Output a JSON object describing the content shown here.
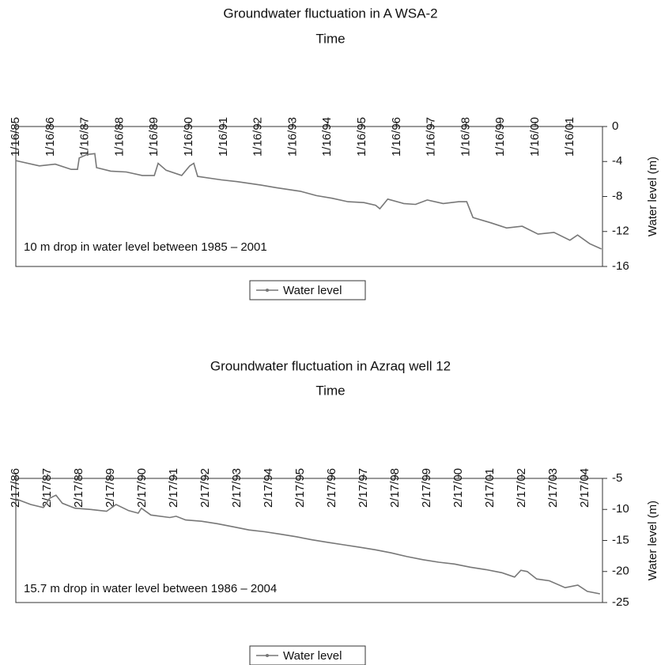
{
  "chart_data": [
    {
      "type": "line",
      "title": "Groundwater fluctuation in A WSA-2",
      "xlabel": "Time",
      "ylabel": "Water level (m)",
      "annotation": "10 m drop in water level between 1985 – 2001",
      "x": [
        1985.04,
        1985.72,
        1986.18,
        1986.64,
        1986.82,
        1986.87,
        1987.09,
        1987.32,
        1987.37,
        1987.78,
        1988.23,
        1988.69,
        1989.04,
        1989.15,
        1989.38,
        1989.83,
        1990.06,
        1990.18,
        1990.29,
        1990.98,
        1991.43,
        1992.12,
        1992.57,
        1993.26,
        1993.72,
        1994.17,
        1994.63,
        1995.09,
        1995.43,
        1995.55,
        1995.78,
        1996.24,
        1996.58,
        1996.92,
        1997.38,
        1997.83,
        1998.06,
        1998.24,
        1998.75,
        1999.21,
        1999.66,
        2000.12,
        2000.58,
        2001.04,
        2001.26,
        2001.61,
        2001.95
      ],
      "series": [
        {
          "name": "Water level",
          "color": "#777777",
          "values": [
            -3.9,
            -4.5,
            -4.3,
            -4.9,
            -4.9,
            -3.6,
            -3.2,
            -3.1,
            -4.7,
            -5.1,
            -5.2,
            -5.6,
            -5.6,
            -4.2,
            -5.0,
            -5.6,
            -4.5,
            -4.2,
            -5.7,
            -6.1,
            -6.3,
            -6.7,
            -7.0,
            -7.4,
            -7.9,
            -8.2,
            -8.6,
            -8.7,
            -9.0,
            -9.4,
            -8.3,
            -8.8,
            -8.9,
            -8.4,
            -8.8,
            -8.6,
            -8.6,
            -10.4,
            -11.0,
            -11.6,
            -11.4,
            -12.3,
            -12.1,
            -13.0,
            -12.4,
            -13.4,
            -14.0
          ]
        }
      ],
      "xlim": [
        1985.04,
        2001.98
      ],
      "xticks": [
        {
          "value": 1985.04,
          "label": "1/16/85"
        },
        {
          "value": 1986.04,
          "label": "1/16/86"
        },
        {
          "value": 1987.04,
          "label": "1/16/87"
        },
        {
          "value": 1988.04,
          "label": "1/16/88"
        },
        {
          "value": 1989.04,
          "label": "1/16/89"
        },
        {
          "value": 1990.04,
          "label": "1/16/90"
        },
        {
          "value": 1991.04,
          "label": "1/16/91"
        },
        {
          "value": 1992.04,
          "label": "1/16/92"
        },
        {
          "value": 1993.04,
          "label": "1/16/93"
        },
        {
          "value": 1994.04,
          "label": "1/16/94"
        },
        {
          "value": 1995.04,
          "label": "1/16/95"
        },
        {
          "value": 1996.04,
          "label": "1/16/96"
        },
        {
          "value": 1997.04,
          "label": "1/16/97"
        },
        {
          "value": 1998.04,
          "label": "1/16/98"
        },
        {
          "value": 1999.04,
          "label": "1/16/99"
        },
        {
          "value": 2000.04,
          "label": "1/16/00"
        },
        {
          "value": 2001.04,
          "label": "1/16/01"
        }
      ],
      "ylim": [
        -16,
        0
      ],
      "yticks": [
        0,
        -4,
        -8,
        -12,
        -16
      ],
      "legend": "bottom"
    },
    {
      "type": "line",
      "title": "Groundwater fluctuation in Azraq well 12",
      "xlabel": "Time",
      "ylabel": "Water level (m)",
      "annotation": "15.7 m drop in water level between 1986 – 2004",
      "x": [
        1986.13,
        1986.6,
        1987.0,
        1987.2,
        1987.4,
        1987.6,
        1988.0,
        1988.5,
        1989.0,
        1989.3,
        1989.7,
        1990.0,
        1990.1,
        1990.4,
        1991.0,
        1991.2,
        1991.5,
        1992.0,
        1992.5,
        1993.0,
        1993.5,
        1994.0,
        1994.5,
        1995.0,
        1995.5,
        1996.0,
        1996.5,
        1997.0,
        1997.5,
        1998.0,
        1998.5,
        1999.0,
        1999.5,
        2000.0,
        2000.5,
        2001.0,
        2001.5,
        2001.9,
        2002.1,
        2002.3,
        2002.6,
        2003.0,
        2003.5,
        2003.9,
        2004.2,
        2004.6
      ],
      "series": [
        {
          "name": "Water level",
          "color": "#777777",
          "values": [
            -8.3,
            -9.2,
            -9.7,
            -8.2,
            -7.7,
            -9.0,
            -9.8,
            -10.0,
            -10.3,
            -9.2,
            -10.2,
            -10.6,
            -9.8,
            -10.9,
            -11.3,
            -11.1,
            -11.7,
            -11.9,
            -12.3,
            -12.8,
            -13.3,
            -13.6,
            -14.0,
            -14.4,
            -14.9,
            -15.3,
            -15.7,
            -16.1,
            -16.5,
            -17.0,
            -17.6,
            -18.1,
            -18.5,
            -18.8,
            -19.3,
            -19.7,
            -20.2,
            -20.9,
            -19.8,
            -20.0,
            -21.2,
            -21.5,
            -22.6,
            -22.2,
            -23.2,
            -23.6
          ]
        }
      ],
      "xlim": [
        1986.13,
        2004.68
      ],
      "xticks": [
        {
          "value": 1986.13,
          "label": "2/17/86"
        },
        {
          "value": 1987.13,
          "label": "2/17/87"
        },
        {
          "value": 1988.13,
          "label": "2/17/88"
        },
        {
          "value": 1989.13,
          "label": "2/17/89"
        },
        {
          "value": 1990.13,
          "label": "2/17/90"
        },
        {
          "value": 1991.13,
          "label": "2/17/91"
        },
        {
          "value": 1992.13,
          "label": "2/17/92"
        },
        {
          "value": 1993.13,
          "label": "2/17/93"
        },
        {
          "value": 1994.13,
          "label": "2/17/94"
        },
        {
          "value": 1995.13,
          "label": "2/17/95"
        },
        {
          "value": 1996.13,
          "label": "2/17/96"
        },
        {
          "value": 1997.13,
          "label": "2/17/97"
        },
        {
          "value": 1998.13,
          "label": "2/17/98"
        },
        {
          "value": 1999.13,
          "label": "2/17/99"
        },
        {
          "value": 2000.13,
          "label": "2/17/00"
        },
        {
          "value": 2001.13,
          "label": "2/17/01"
        },
        {
          "value": 2002.13,
          "label": "2/17/02"
        },
        {
          "value": 2003.13,
          "label": "2/17/03"
        },
        {
          "value": 2004.13,
          "label": "2/17/04"
        }
      ],
      "ylim": [
        -25,
        -5
      ],
      "yticks": [
        -5,
        -10,
        -15,
        -20,
        -25
      ],
      "legend": "bottom"
    }
  ]
}
